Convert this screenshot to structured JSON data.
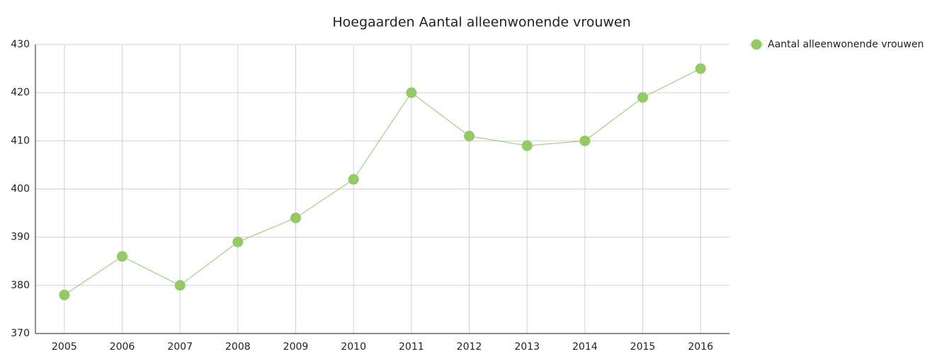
{
  "chart_data": {
    "type": "line",
    "title": "Hoegaarden  Aantal alleenwonende vrouwen",
    "categories": [
      "2005",
      "2006",
      "2007",
      "2008",
      "2009",
      "2010",
      "2011",
      "2012",
      "2013",
      "2014",
      "2015",
      "2016"
    ],
    "series": [
      {
        "name": "Aantal alleenwonende vrouwen",
        "color": "#94c966",
        "values": [
          378,
          386,
          380,
          389,
          394,
          402,
          420,
          411,
          409,
          410,
          419,
          425
        ]
      }
    ],
    "ylim": [
      370,
      430
    ],
    "yticks": [
      370,
      380,
      390,
      400,
      410,
      420,
      430
    ],
    "grid": true,
    "legend": "right"
  }
}
